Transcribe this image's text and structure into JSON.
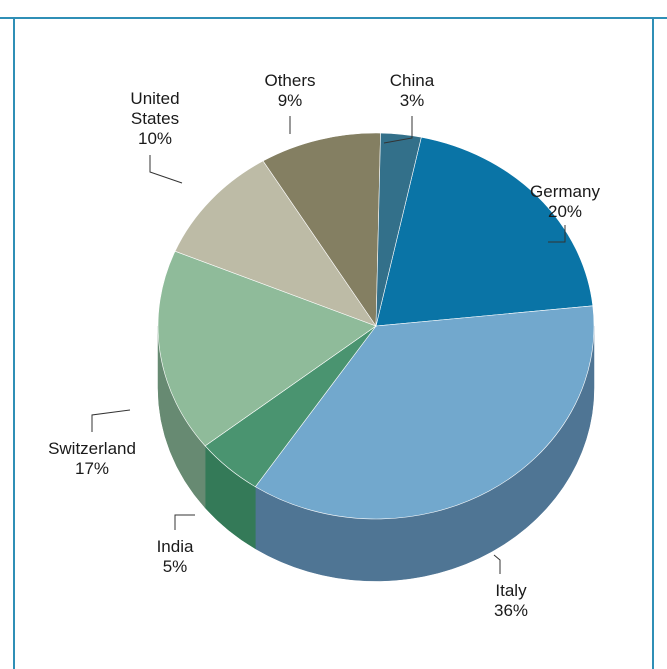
{
  "chart_data": {
    "type": "pie",
    "title": "",
    "slices": [
      {
        "name": "Germany",
        "value": 20,
        "label": "20%",
        "color": "#0a74a6",
        "side": "#0a5f88"
      },
      {
        "name": "Italy",
        "value": 36,
        "label": "36%",
        "color": "#72a8cd",
        "side": "#4f7594"
      },
      {
        "name": "India",
        "value": 5,
        "label": "5%",
        "color": "#4a9470",
        "side": "#347a58"
      },
      {
        "name": "Switzerland",
        "value": 17,
        "label": "17%",
        "color": "#8fbb9a",
        "side": "#678a72"
      },
      {
        "name": "United States",
        "value": 10,
        "label": "10%",
        "color": "#bdbba6",
        "side": "#8f8d7c"
      },
      {
        "name": "Others",
        "value": 9,
        "label": "9%",
        "color": "#847f62",
        "side": "#68644c"
      },
      {
        "name": "China",
        "value": 3,
        "label": "3%",
        "color": "#33708a",
        "side": "#285a70"
      }
    ],
    "label_lines": {
      "Germany": [
        "Germany",
        "20%"
      ],
      "Italy": [
        "Italy",
        "36%"
      ],
      "India": [
        "India",
        "5%"
      ],
      "Switzerland": [
        "Switzerland",
        "17%"
      ],
      "United States": [
        "United",
        "States",
        "10%"
      ],
      "Others": [
        "Others",
        "9%"
      ],
      "China": [
        "China",
        "3%"
      ]
    },
    "legend": "none",
    "style": "3d-tilted-pie"
  }
}
